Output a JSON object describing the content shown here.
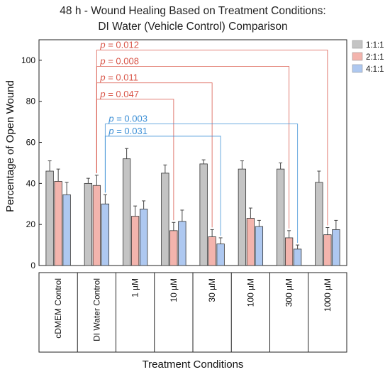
{
  "chart_data": {
    "type": "bar",
    "title": [
      "48 h - Wound Healing Based on Treatment Conditions:",
      "DI Water (Vehicle Control) Comparison"
    ],
    "xlabel": "Treatment Conditions",
    "ylabel": "Percentage of Open Wound",
    "ylim": [
      0,
      110
    ],
    "yticks": [
      0,
      20,
      40,
      60,
      80,
      100
    ],
    "grid": false,
    "legend_position": "top-right",
    "categories": [
      "cDMEM Control",
      "DI Water Control",
      "1 µM",
      "10 µM",
      "30 µM",
      "100 µM",
      "300 µM",
      "1000 µM"
    ],
    "series": [
      {
        "name": "1:1:1",
        "color": "#c4c4c4",
        "values": [
          46,
          40,
          52,
          45,
          49.5,
          47,
          47,
          40.5
        ],
        "errors": [
          5,
          2.5,
          5,
          4,
          2,
          4,
          3,
          5.5
        ]
      },
      {
        "name": "2:1:1",
        "color": "#f3b4ad",
        "values": [
          41,
          39,
          24,
          17,
          14,
          23,
          13.5,
          15
        ],
        "errors": [
          6,
          5,
          5,
          4,
          3.5,
          5,
          3.5,
          3.5
        ]
      },
      {
        "name": "4:1:1",
        "color": "#aec8f0",
        "values": [
          34.5,
          30,
          27.5,
          21.5,
          10.5,
          19,
          8,
          17.5
        ],
        "errors": [
          6,
          4.5,
          4,
          5.5,
          3,
          3,
          2,
          4.5
        ]
      }
    ],
    "annotations": [
      {
        "label": "p = 0.012",
        "p_value": "0.012",
        "color": "#d9574a",
        "from_category": "DI Water Control",
        "from_series": "2:1:1",
        "to_category": "1000 µM",
        "to_series": "2:1:1",
        "y": 105
      },
      {
        "label": "p = 0.008",
        "p_value": "0.008",
        "color": "#d9574a",
        "from_category": "DI Water Control",
        "from_series": "2:1:1",
        "to_category": "300 µM",
        "to_series": "2:1:1",
        "y": 97
      },
      {
        "label": "p = 0.011",
        "p_value": "0.011",
        "color": "#d9574a",
        "from_category": "DI Water Control",
        "from_series": "2:1:1",
        "to_category": "30 µM",
        "to_series": "2:1:1",
        "y": 89
      },
      {
        "label": "p = 0.047",
        "p_value": "0.047",
        "color": "#d9574a",
        "from_category": "DI Water Control",
        "from_series": "2:1:1",
        "to_category": "10 µM",
        "to_series": "2:1:1",
        "y": 81
      },
      {
        "label": "p = 0.003",
        "p_value": "0.003",
        "color": "#3c8fd6",
        "from_category": "DI Water Control",
        "from_series": "4:1:1",
        "to_category": "300 µM",
        "to_series": "4:1:1",
        "y": 69
      },
      {
        "label": "p = 0.031",
        "p_value": "0.031",
        "color": "#3c8fd6",
        "from_category": "DI Water Control",
        "from_series": "4:1:1",
        "to_category": "30 µM",
        "to_series": "4:1:1",
        "y": 63
      }
    ]
  }
}
